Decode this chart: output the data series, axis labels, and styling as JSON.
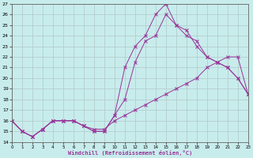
{
  "xlabel": "Windchill (Refroidissement éolien,°C)",
  "background_color": "#c8ecec",
  "line_color": "#993399",
  "grid_color": "#b0c8c8",
  "xlim": [
    0,
    23
  ],
  "ylim": [
    14,
    27
  ],
  "xticks": [
    0,
    1,
    2,
    3,
    4,
    5,
    6,
    7,
    8,
    9,
    10,
    11,
    12,
    13,
    14,
    15,
    16,
    17,
    18,
    19,
    20,
    21,
    22,
    23
  ],
  "yticks": [
    14,
    15,
    16,
    17,
    18,
    19,
    20,
    21,
    22,
    23,
    24,
    25,
    26,
    27
  ],
  "line_smooth_x": [
    0,
    1,
    2,
    3,
    4,
    5,
    6,
    7,
    8,
    9,
    10,
    11,
    12,
    13,
    14,
    15,
    16,
    17,
    18,
    19,
    20,
    21,
    22,
    23
  ],
  "line_smooth_y": [
    16,
    15,
    14.5,
    15.2,
    16,
    16,
    16,
    15.5,
    15.2,
    15.2,
    16,
    16.5,
    17,
    17.5,
    18,
    18.5,
    19,
    19.5,
    20,
    21,
    21.5,
    22,
    22,
    18.5
  ],
  "line_mid_x": [
    0,
    1,
    2,
    3,
    4,
    5,
    6,
    7,
    8,
    9,
    10,
    11,
    12,
    13,
    14,
    15,
    16,
    17,
    18,
    19,
    20,
    21,
    22,
    23
  ],
  "line_mid_y": [
    16,
    15,
    14.5,
    15.2,
    16,
    16,
    16,
    15.5,
    15,
    15,
    16.5,
    21,
    23,
    24,
    26,
    27,
    25,
    24.5,
    23,
    22,
    21.5,
    21,
    20,
    18.5
  ],
  "line_top_x": [
    0,
    1,
    2,
    3,
    4,
    5,
    6,
    7,
    8,
    9,
    10,
    11,
    12,
    13,
    14,
    15,
    16,
    17,
    18,
    19,
    20,
    21,
    22,
    23
  ],
  "line_top_y": [
    16,
    15,
    14.5,
    15.2,
    16,
    16,
    16,
    15.5,
    15,
    15,
    16.5,
    18,
    21.5,
    23.5,
    24,
    26,
    25,
    24,
    23.5,
    22,
    21.5,
    21,
    20,
    18.5
  ]
}
